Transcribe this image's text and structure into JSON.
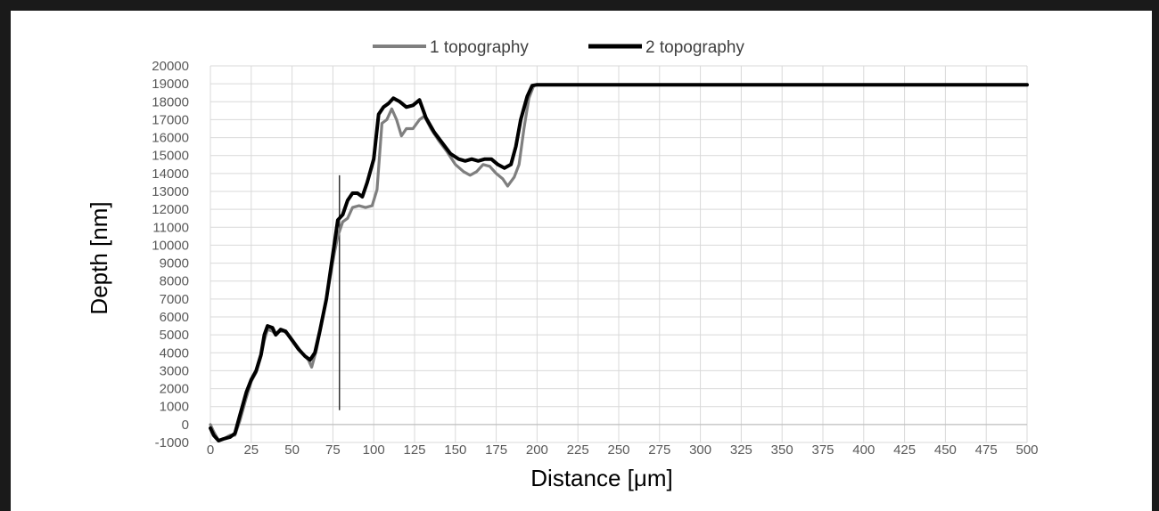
{
  "chart_data": {
    "type": "line",
    "xlabel": "Distance [μm]",
    "ylabel": "Depth [nm]",
    "xlim": [
      0,
      500
    ],
    "ylim": [
      -1000,
      20000
    ],
    "xticks": [
      0,
      25,
      50,
      75,
      100,
      125,
      150,
      175,
      200,
      225,
      250,
      275,
      300,
      325,
      350,
      375,
      400,
      425,
      450,
      475,
      500
    ],
    "yticks": [
      -1000,
      0,
      1000,
      2000,
      3000,
      4000,
      5000,
      6000,
      7000,
      8000,
      9000,
      10000,
      11000,
      12000,
      13000,
      14000,
      15000,
      16000,
      17000,
      18000,
      19000,
      20000
    ],
    "grid": true,
    "legend_position": "top",
    "series": [
      {
        "name": "1 topography",
        "color": "#7f7f7f",
        "points": [
          [
            0,
            0
          ],
          [
            2,
            -400
          ],
          [
            5,
            -900
          ],
          [
            8,
            -800
          ],
          [
            12,
            -600
          ],
          [
            15,
            -600
          ],
          [
            18,
            200
          ],
          [
            22,
            1500
          ],
          [
            25,
            2400
          ],
          [
            28,
            2900
          ],
          [
            31,
            3800
          ],
          [
            33,
            4700
          ],
          [
            35,
            5300
          ],
          [
            38,
            5200
          ],
          [
            40,
            5000
          ],
          [
            42,
            5200
          ],
          [
            45,
            5200
          ],
          [
            48,
            5000
          ],
          [
            52,
            4500
          ],
          [
            56,
            4000
          ],
          [
            60,
            3600
          ],
          [
            62,
            3200
          ],
          [
            65,
            4200
          ],
          [
            68,
            5600
          ],
          [
            72,
            7500
          ],
          [
            76,
            9600
          ],
          [
            78,
            10500
          ],
          [
            81,
            11300
          ],
          [
            84,
            11500
          ],
          [
            87,
            12100
          ],
          [
            91,
            12200
          ],
          [
            95,
            12100
          ],
          [
            99,
            12200
          ],
          [
            102,
            13100
          ],
          [
            105,
            16800
          ],
          [
            108,
            17000
          ],
          [
            111,
            17600
          ],
          [
            114,
            17000
          ],
          [
            117,
            16100
          ],
          [
            120,
            16500
          ],
          [
            124,
            16500
          ],
          [
            128,
            17000
          ],
          [
            131,
            17200
          ],
          [
            135,
            16500
          ],
          [
            140,
            15800
          ],
          [
            145,
            15200
          ],
          [
            150,
            14500
          ],
          [
            155,
            14100
          ],
          [
            159,
            13900
          ],
          [
            163,
            14100
          ],
          [
            167,
            14500
          ],
          [
            171,
            14400
          ],
          [
            175,
            14000
          ],
          [
            179,
            13700
          ],
          [
            182,
            13300
          ],
          [
            186,
            13800
          ],
          [
            189,
            14500
          ],
          [
            192,
            16500
          ],
          [
            195,
            18200
          ],
          [
            198,
            18900
          ],
          [
            200,
            18950
          ],
          [
            500,
            18950
          ]
        ]
      },
      {
        "name": "2 topography",
        "color": "#000000",
        "points": [
          [
            0,
            -200
          ],
          [
            2,
            -600
          ],
          [
            5,
            -900
          ],
          [
            8,
            -800
          ],
          [
            12,
            -700
          ],
          [
            15,
            -500
          ],
          [
            18,
            500
          ],
          [
            22,
            1800
          ],
          [
            25,
            2500
          ],
          [
            28,
            3000
          ],
          [
            31,
            3900
          ],
          [
            33,
            5000
          ],
          [
            35,
            5500
          ],
          [
            38,
            5400
          ],
          [
            40,
            5000
          ],
          [
            43,
            5300
          ],
          [
            46,
            5200
          ],
          [
            50,
            4700
          ],
          [
            54,
            4200
          ],
          [
            58,
            3800
          ],
          [
            61,
            3600
          ],
          [
            64,
            4000
          ],
          [
            67,
            5200
          ],
          [
            71,
            7000
          ],
          [
            75,
            9500
          ],
          [
            78,
            11400
          ],
          [
            81,
            11700
          ],
          [
            84,
            12500
          ],
          [
            87,
            12900
          ],
          [
            90,
            12900
          ],
          [
            93,
            12700
          ],
          [
            96,
            13500
          ],
          [
            100,
            14800
          ],
          [
            103,
            17300
          ],
          [
            106,
            17700
          ],
          [
            109,
            17900
          ],
          [
            112,
            18200
          ],
          [
            116,
            18000
          ],
          [
            120,
            17700
          ],
          [
            124,
            17800
          ],
          [
            128,
            18100
          ],
          [
            132,
            17100
          ],
          [
            137,
            16300
          ],
          [
            142,
            15700
          ],
          [
            147,
            15100
          ],
          [
            152,
            14800
          ],
          [
            156,
            14700
          ],
          [
            160,
            14800
          ],
          [
            164,
            14700
          ],
          [
            168,
            14800
          ],
          [
            172,
            14800
          ],
          [
            176,
            14500
          ],
          [
            180,
            14300
          ],
          [
            184,
            14500
          ],
          [
            187,
            15500
          ],
          [
            190,
            17000
          ],
          [
            194,
            18300
          ],
          [
            197,
            18900
          ],
          [
            200,
            18950
          ],
          [
            500,
            18950
          ]
        ]
      }
    ],
    "annotations": [
      {
        "type": "vertical-line",
        "x": 79,
        "y_from": 800,
        "y_to": 13900,
        "color": "#333333"
      }
    ]
  }
}
